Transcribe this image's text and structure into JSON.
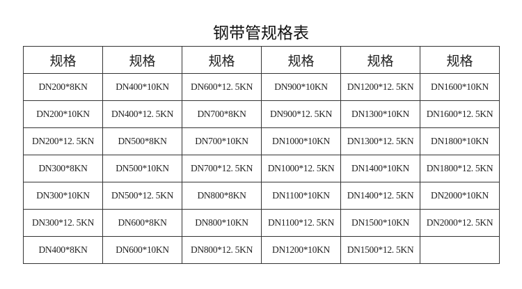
{
  "title": "钢带管规格表",
  "table": {
    "headers": [
      "规格",
      "规格",
      "规格",
      "规格",
      "规格",
      "规格"
    ],
    "rows": [
      [
        "DN200*8KN",
        "DN400*10KN",
        "DN600*12. 5KN",
        "DN900*10KN",
        "DN1200*12. 5KN",
        "DN1600*10KN"
      ],
      [
        "DN200*10KN",
        "DN400*12. 5KN",
        "DN700*8KN",
        "DN900*12. 5KN",
        "DN1300*10KN",
        "DN1600*12. 5KN"
      ],
      [
        "DN200*12. 5KN",
        "DN500*8KN",
        "DN700*10KN",
        "DN1000*10KN",
        "DN1300*12. 5KN",
        "DN1800*10KN"
      ],
      [
        "DN300*8KN",
        "DN500*10KN",
        "DN700*12. 5KN",
        "DN1000*12. 5KN",
        "DN1400*10KN",
        "DN1800*12. 5KN"
      ],
      [
        "DN300*10KN",
        "DN500*12. 5KN",
        "DN800*8KN",
        "DN1100*10KN",
        "DN1400*12. 5KN",
        "DN2000*10KN"
      ],
      [
        "DN300*12. 5KN",
        "DN600*8KN",
        "DN800*10KN",
        "DN1100*12. 5KN",
        "DN1500*10KN",
        "DN2000*12. 5KN"
      ],
      [
        "DN400*8KN",
        "DN600*10KN",
        "DN800*12. 5KN",
        "DN1200*10KN",
        "DN1500*12. 5KN",
        ""
      ]
    ]
  }
}
